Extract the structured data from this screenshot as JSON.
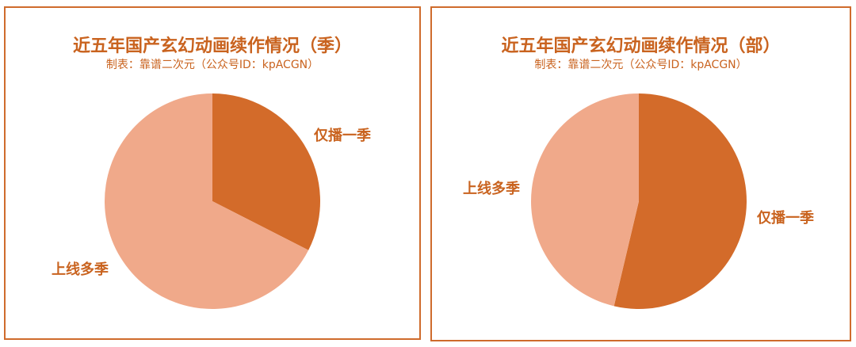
{
  "chart_data": [
    {
      "type": "pie",
      "title": "近五年国产玄幻动画续作情况（季）",
      "subtitle": "制表：靠谱二次元（公众号ID：kpACGN）",
      "categories": [
        "仅播一季",
        "上线多季"
      ],
      "values": [
        32.5,
        67.5
      ],
      "unit": "%",
      "colors": [
        "#d36b2a",
        "#f0a98a"
      ],
      "legend": "none"
    },
    {
      "type": "pie",
      "title": "近五年国产玄幻动画续作情况（部）",
      "subtitle": "制表：靠谱二次元（公众号ID：kpACGN）",
      "categories": [
        "仅播一季",
        "上线多季"
      ],
      "values": [
        53.7,
        46.3
      ],
      "unit": "%",
      "colors": [
        "#d36b2a",
        "#f0a98a"
      ],
      "legend": "none"
    }
  ]
}
